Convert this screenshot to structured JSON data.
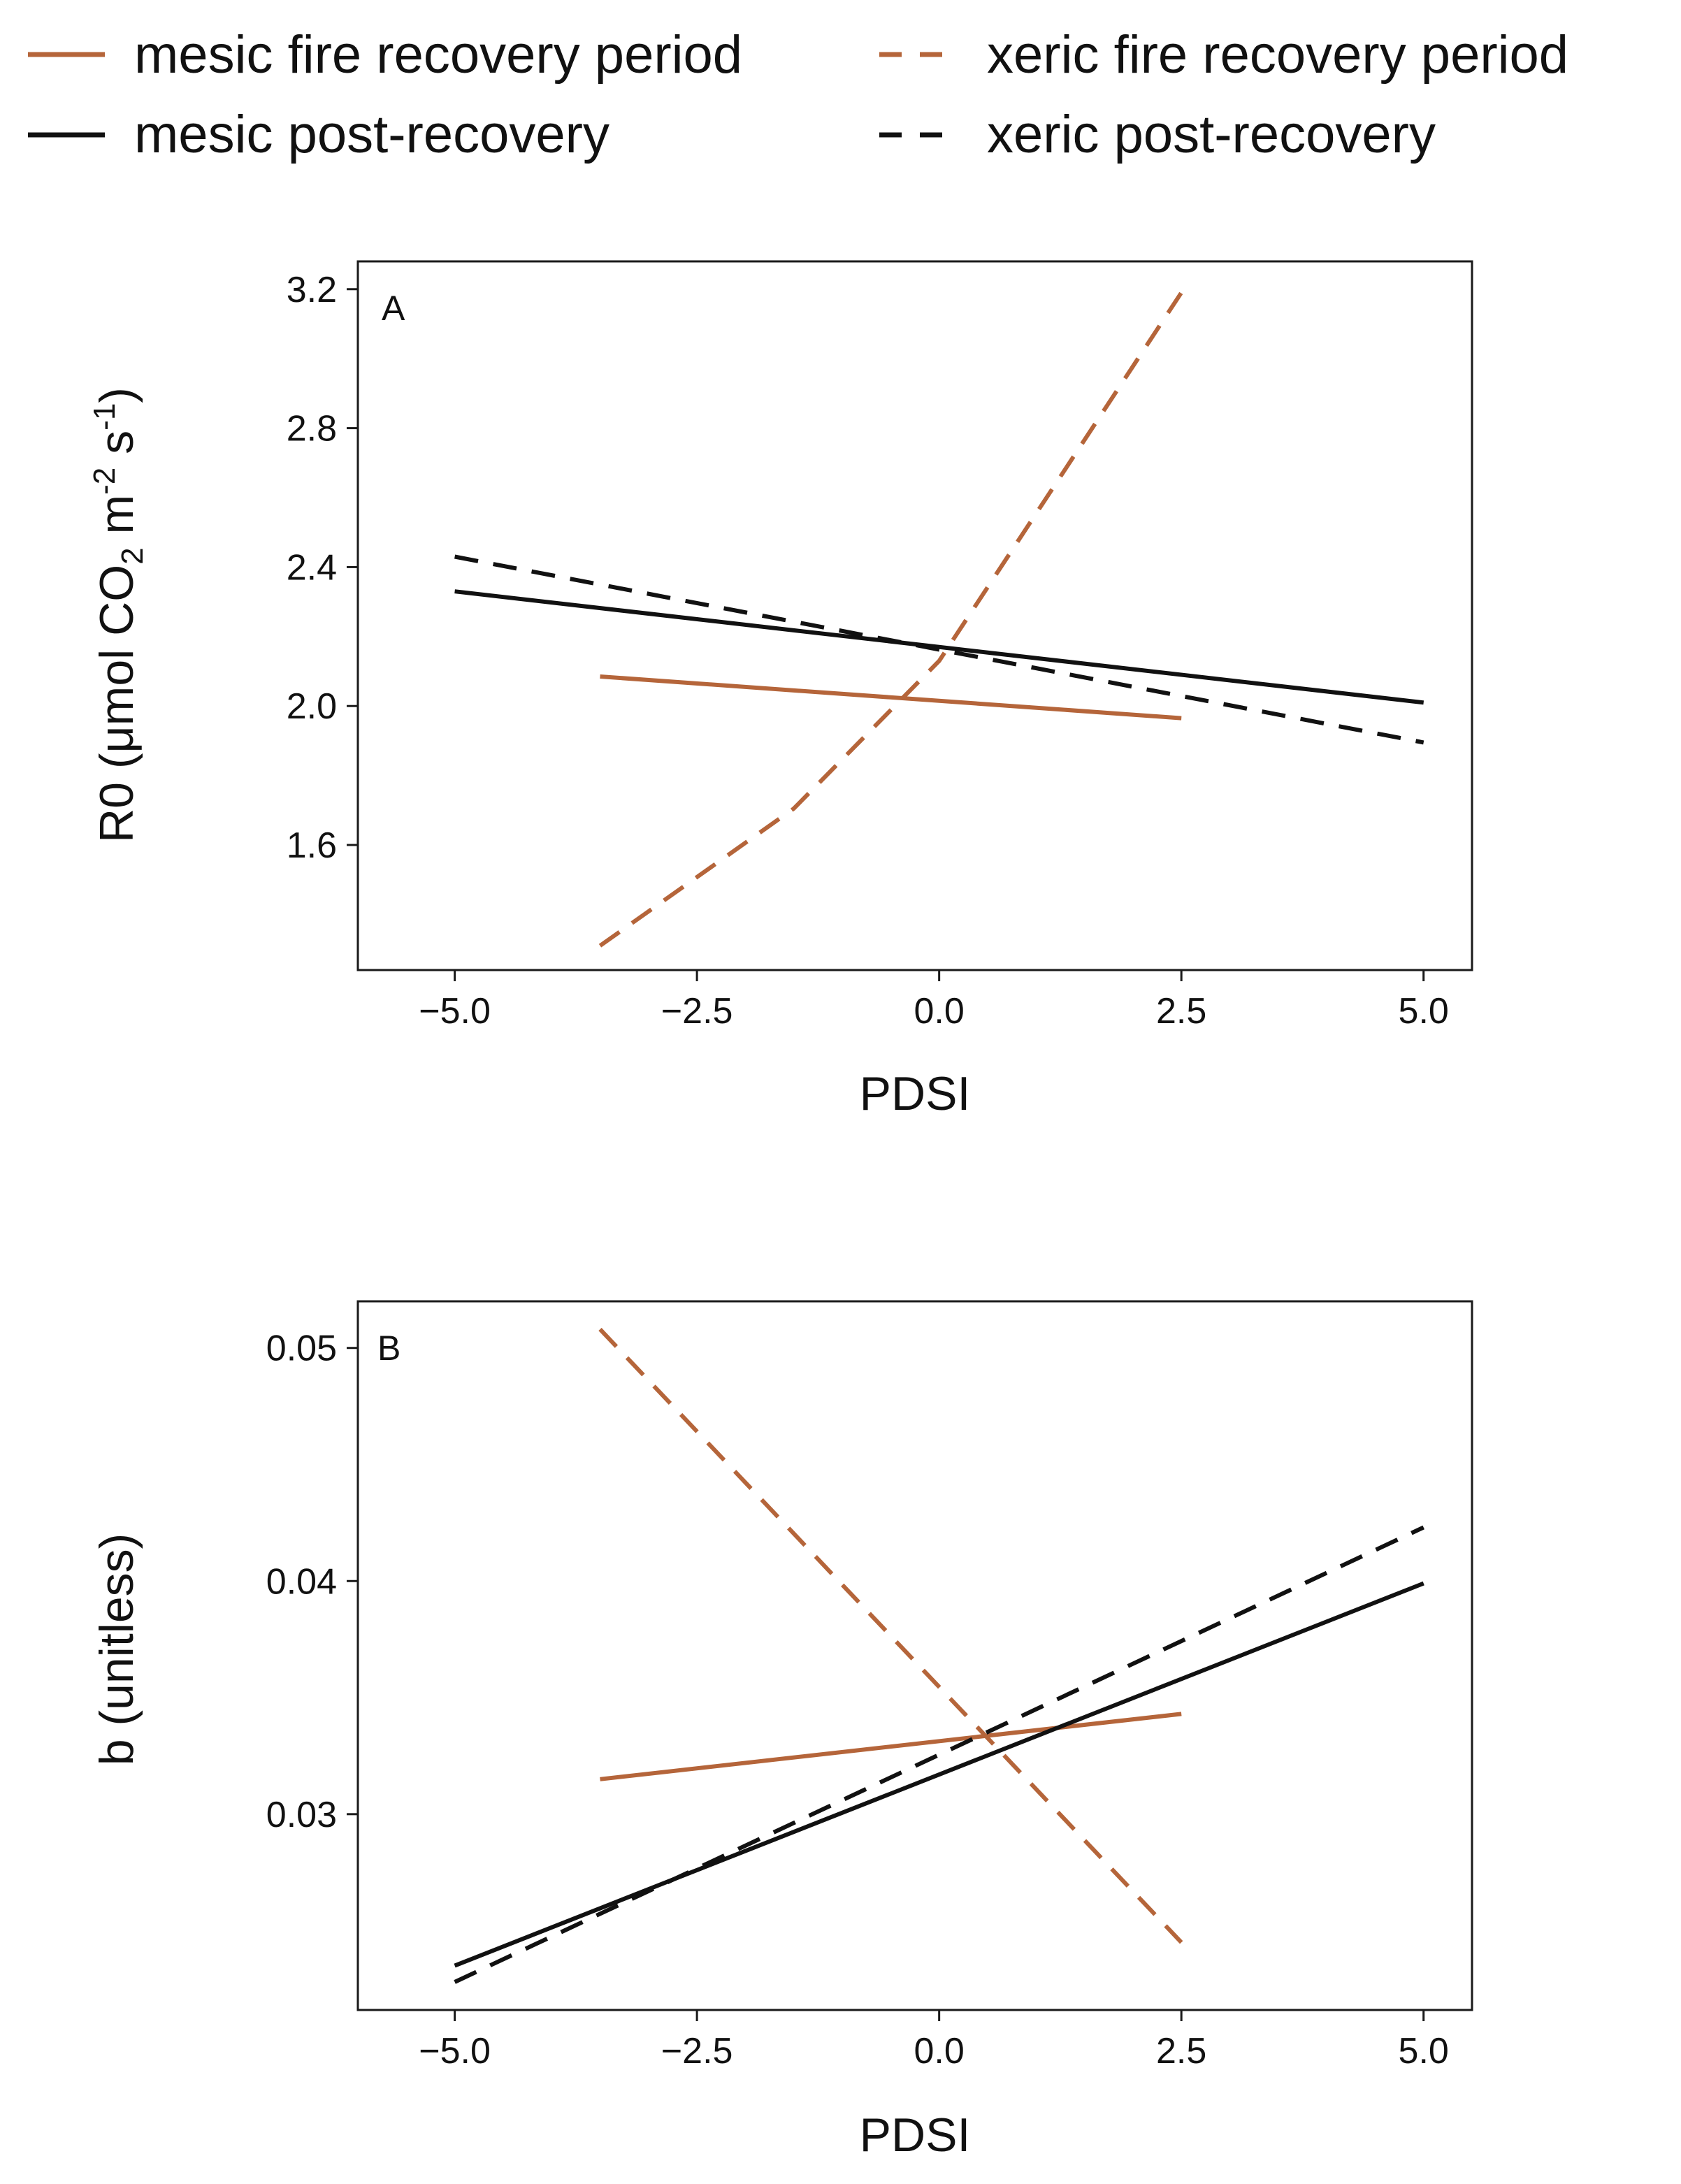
{
  "legend": [
    {
      "key": "mesic_fire",
      "label": "mesic fire recovery period",
      "color": "#B5653A",
      "dashed": false
    },
    {
      "key": "xeric_fire",
      "label": "xeric fire recovery period",
      "color": "#B5653A",
      "dashed": true
    },
    {
      "key": "mesic_post",
      "label": "mesic post-recovery",
      "color": "#111111",
      "dashed": false
    },
    {
      "key": "xeric_post",
      "label": "xeric post-recovery",
      "color": "#111111",
      "dashed": true
    }
  ],
  "chart_data": [
    {
      "type": "line",
      "panel": "A",
      "xlabel": "PDSI",
      "ylabel": {
        "main": "R0 (μmol CO",
        "sub": "2",
        "mid": " m",
        "sup1": "-2",
        "tail": " s",
        "sup2": "-1",
        "end": ")"
      },
      "xlim": [
        -6.0,
        5.5
      ],
      "ylim": [
        1.24,
        3.28
      ],
      "xticks": [
        -5.0,
        -2.5,
        0.0,
        2.5,
        5.0
      ],
      "xtick_labels": [
        "−5.0",
        "−2.5",
        "0.0",
        "2.5",
        "5.0"
      ],
      "yticks": [
        1.6,
        2.0,
        2.4,
        2.8,
        3.2
      ],
      "ytick_labels": [
        "1.6",
        "2.0",
        "2.4",
        "2.8",
        "3.2"
      ],
      "series": [
        {
          "key": "mesic_fire",
          "name": "mesic fire recovery period",
          "x": [
            -3.5,
            2.5
          ],
          "y": [
            2.085,
            1.965
          ]
        },
        {
          "key": "xeric_fire",
          "name": "xeric fire recovery period",
          "x": [
            -3.5,
            -1.5,
            0.0,
            2.5
          ],
          "y": [
            1.31,
            1.705,
            2.13,
            3.19
          ]
        },
        {
          "key": "mesic_post",
          "name": "mesic post-recovery",
          "x": [
            -5.0,
            5.0
          ],
          "y": [
            2.33,
            2.01
          ]
        },
        {
          "key": "xeric_post",
          "name": "xeric post-recovery",
          "x": [
            -5.0,
            5.0
          ],
          "y": [
            2.43,
            1.895
          ]
        }
      ]
    },
    {
      "type": "line",
      "panel": "B",
      "xlabel": "PDSI",
      "ylabel": {
        "main": "b (unitless)"
      },
      "xlim": [
        -6.0,
        5.5
      ],
      "ylim": [
        0.0216,
        0.052
      ],
      "xticks": [
        -5.0,
        -2.5,
        0.0,
        2.5,
        5.0
      ],
      "xtick_labels": [
        "−5.0",
        "−2.5",
        "0.0",
        "2.5",
        "5.0"
      ],
      "yticks": [
        0.03,
        0.04,
        0.05
      ],
      "ytick_labels": [
        "0.03",
        "0.04",
        "0.05"
      ],
      "series": [
        {
          "key": "mesic_fire",
          "name": "mesic fire recovery period",
          "x": [
            -3.5,
            2.5
          ],
          "y": [
            0.0315,
            0.0343
          ]
        },
        {
          "key": "xeric_fire",
          "name": "xeric fire recovery period",
          "x": [
            -3.5,
            2.5
          ],
          "y": [
            0.0508,
            0.0245
          ]
        },
        {
          "key": "mesic_post",
          "name": "mesic post-recovery",
          "x": [
            -5.0,
            5.0
          ],
          "y": [
            0.0235,
            0.0399
          ]
        },
        {
          "key": "xeric_post",
          "name": "xeric post-recovery",
          "x": [
            -5.0,
            5.0
          ],
          "y": [
            0.0228,
            0.0423
          ]
        }
      ]
    }
  ]
}
